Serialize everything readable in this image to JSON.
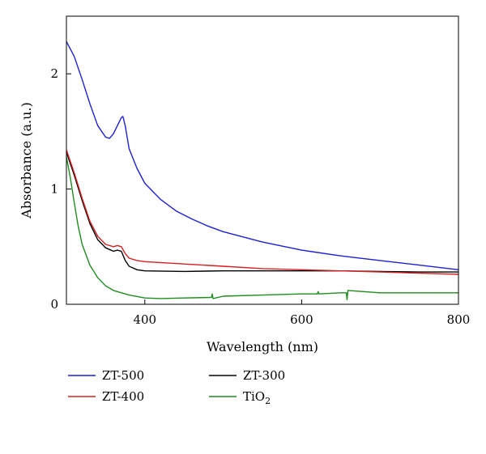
{
  "chart_data": {
    "type": "line",
    "title": "",
    "xlabel": "Wavelength (nm)",
    "ylabel": "Absorbance (a.u.)",
    "xlim": [
      300,
      800
    ],
    "ylim": [
      0,
      2.5
    ],
    "xticks": [
      400,
      600,
      800
    ],
    "yticks": [
      0,
      1,
      2
    ],
    "grid": false,
    "legend_placement": "below",
    "series": [
      {
        "name": "ZT-500",
        "color": "#1f1fd6",
        "x": [
          300,
          310,
          320,
          330,
          340,
          350,
          355,
          360,
          365,
          370,
          372,
          375,
          380,
          390,
          400,
          420,
          440,
          460,
          480,
          500,
          550,
          600,
          650,
          700,
          750,
          800
        ],
        "y": [
          2.28,
          2.15,
          1.95,
          1.74,
          1.55,
          1.45,
          1.44,
          1.48,
          1.55,
          1.62,
          1.63,
          1.55,
          1.35,
          1.18,
          1.05,
          0.91,
          0.81,
          0.74,
          0.68,
          0.63,
          0.54,
          0.47,
          0.42,
          0.38,
          0.34,
          0.3
        ]
      },
      {
        "name": "ZT-300",
        "color": "#000000",
        "x": [
          300,
          310,
          320,
          330,
          340,
          350,
          360,
          365,
          370,
          375,
          380,
          390,
          400,
          450,
          500,
          550,
          600,
          650,
          700,
          750,
          800
        ],
        "y": [
          1.32,
          1.12,
          0.9,
          0.7,
          0.56,
          0.49,
          0.46,
          0.47,
          0.46,
          0.38,
          0.33,
          0.3,
          0.29,
          0.285,
          0.29,
          0.29,
          0.29,
          0.29,
          0.285,
          0.28,
          0.28
        ]
      },
      {
        "name": "ZT-400",
        "color": "#d62020",
        "x": [
          300,
          310,
          320,
          330,
          340,
          350,
          360,
          365,
          370,
          375,
          380,
          390,
          400,
          450,
          500,
          550,
          600,
          650,
          700,
          750,
          800
        ],
        "y": [
          1.34,
          1.14,
          0.92,
          0.72,
          0.59,
          0.52,
          0.5,
          0.51,
          0.5,
          0.44,
          0.4,
          0.38,
          0.37,
          0.35,
          0.33,
          0.31,
          0.3,
          0.29,
          0.28,
          0.27,
          0.26
        ]
      },
      {
        "name": "TiO2",
        "color": "#1e8c1e",
        "x": [
          300,
          305,
          310,
          315,
          320,
          330,
          340,
          350,
          360,
          380,
          400,
          420,
          450,
          485,
          486,
          487,
          500,
          550,
          600,
          620,
          621,
          622,
          650,
          657,
          658,
          659,
          700,
          750,
          800
        ],
        "y": [
          1.28,
          1.1,
          0.88,
          0.68,
          0.52,
          0.34,
          0.23,
          0.16,
          0.12,
          0.08,
          0.055,
          0.05,
          0.055,
          0.06,
          0.09,
          0.05,
          0.07,
          0.08,
          0.09,
          0.09,
          0.11,
          0.09,
          0.1,
          0.1,
          0.04,
          0.12,
          0.1,
          0.1,
          0.1
        ]
      }
    ]
  },
  "legend": {
    "left": [
      {
        "name": "ZT-500",
        "color": "#1f1fd6"
      },
      {
        "name": "ZT-400",
        "color": "#d62020"
      }
    ],
    "right": [
      {
        "name": "ZT-300",
        "color": "#000000"
      },
      {
        "name": "TiO",
        "sub": "2",
        "color": "#1e8c1e"
      }
    ]
  }
}
